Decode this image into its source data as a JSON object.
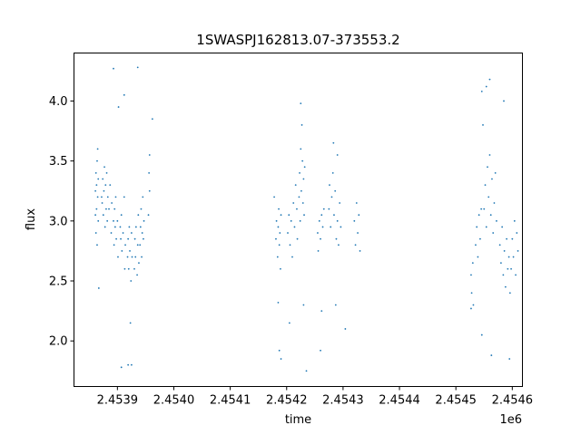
{
  "chart_data": {
    "type": "scatter",
    "title": "1SWASPJ162813.07-373553.2",
    "xlabel": "time",
    "ylabel": "flux",
    "x_offset_label": "1e6",
    "xlim": [
      2453823,
      2454618
    ],
    "ylim": [
      1.62,
      4.4
    ],
    "grid": false,
    "legend": "none",
    "point_color": "#1f77b4",
    "x_ticks": [
      {
        "value": 2453900,
        "label": "2.4539"
      },
      {
        "value": 2454000,
        "label": "2.4540"
      },
      {
        "value": 2454100,
        "label": "2.4541"
      },
      {
        "value": 2454200,
        "label": "2.4542"
      },
      {
        "value": 2454300,
        "label": "2.4543"
      },
      {
        "value": 2454400,
        "label": "2.4544"
      },
      {
        "value": 2454500,
        "label": "2.4545"
      },
      {
        "value": 2454600,
        "label": "2.4546"
      }
    ],
    "y_ticks": [
      {
        "value": 2.0,
        "label": "2.0"
      },
      {
        "value": 2.5,
        "label": "2.5"
      },
      {
        "value": 3.0,
        "label": "3.0"
      },
      {
        "value": 3.5,
        "label": "3.5"
      },
      {
        "value": 4.0,
        "label": "4.0"
      }
    ],
    "series": [
      {
        "points": [
          [
            2453861,
            3.25
          ],
          [
            2453861,
            3.05
          ],
          [
            2453862,
            3.4
          ],
          [
            2453862,
            2.9
          ],
          [
            2453863,
            3.3
          ],
          [
            2453863,
            3.1
          ],
          [
            2453864,
            3.5
          ],
          [
            2453864,
            2.8
          ],
          [
            2453865,
            3.2
          ],
          [
            2453865,
            3.6
          ],
          [
            2453866,
            3.0
          ],
          [
            2453866,
            3.35
          ],
          [
            2453872,
            3.2
          ],
          [
            2453873,
            3.15
          ],
          [
            2453874,
            3.35
          ],
          [
            2453875,
            3.05
          ],
          [
            2453876,
            3.25
          ],
          [
            2453877,
            3.45
          ],
          [
            2453878,
            2.95
          ],
          [
            2453879,
            3.3
          ],
          [
            2453880,
            3.1
          ],
          [
            2453881,
            3.4
          ],
          [
            2453882,
            3.0
          ],
          [
            2453883,
            3.2
          ],
          [
            2453885,
            3.1
          ],
          [
            2453887,
            3.3
          ],
          [
            2453889,
            2.9
          ],
          [
            2453890,
            3.15
          ],
          [
            2453893,
            3.0
          ],
          [
            2453894,
            2.8
          ],
          [
            2453895,
            3.1
          ],
          [
            2453896,
            2.95
          ],
          [
            2453897,
            3.2
          ],
          [
            2453898,
            2.85
          ],
          [
            2453900,
            3.0
          ],
          [
            2453901,
            2.7
          ],
          [
            2453905,
            2.95
          ],
          [
            2453906,
            2.85
          ],
          [
            2453907,
            3.05
          ],
          [
            2453908,
            2.75
          ],
          [
            2453910,
            2.9
          ],
          [
            2453912,
            3.2
          ],
          [
            2453913,
            2.6
          ],
          [
            2453914,
            2.8
          ],
          [
            2453918,
            2.7
          ],
          [
            2453919,
            2.85
          ],
          [
            2453920,
            2.6
          ],
          [
            2453921,
            2.95
          ],
          [
            2453922,
            2.75
          ],
          [
            2453924,
            2.5
          ],
          [
            2453925,
            2.9
          ],
          [
            2453926,
            2.7
          ],
          [
            2453930,
            2.6
          ],
          [
            2453931,
            2.85
          ],
          [
            2453932,
            2.7
          ],
          [
            2453933,
            2.95
          ],
          [
            2453935,
            2.55
          ],
          [
            2453936,
            2.8
          ],
          [
            2453937,
            3.05
          ],
          [
            2453938,
            2.65
          ],
          [
            2453940,
            2.8
          ],
          [
            2453941,
            2.95
          ],
          [
            2453942,
            3.1
          ],
          [
            2453943,
            2.7
          ],
          [
            2453944,
            2.9
          ],
          [
            2453945,
            3.2
          ],
          [
            2453946,
            2.85
          ],
          [
            2453947,
            3.0
          ],
          [
            2453955,
            3.05
          ],
          [
            2453956,
            3.4
          ],
          [
            2453957,
            3.25
          ],
          [
            2453893,
            4.27
          ],
          [
            2453902,
            3.95
          ],
          [
            2453907,
            1.78
          ],
          [
            2453912,
            4.05
          ],
          [
            2453919,
            1.8
          ],
          [
            2453925,
            1.8
          ],
          [
            2453936,
            4.28
          ],
          [
            2453923,
            2.15
          ],
          [
            2453867,
            2.44
          ],
          [
            2453962,
            3.85
          ],
          [
            2453957,
            3.55
          ],
          [
            2454178,
            3.2
          ],
          [
            2454181,
            2.85
          ],
          [
            2454182,
            3.0
          ],
          [
            2454184,
            2.7
          ],
          [
            2454185,
            2.95
          ],
          [
            2454186,
            3.1
          ],
          [
            2454187,
            2.8
          ],
          [
            2454188,
            2.9
          ],
          [
            2454189,
            2.6
          ],
          [
            2454190,
            3.05
          ],
          [
            2454202,
            2.9
          ],
          [
            2454204,
            3.05
          ],
          [
            2454206,
            2.8
          ],
          [
            2454208,
            3.0
          ],
          [
            2454210,
            2.7
          ],
          [
            2454212,
            3.15
          ],
          [
            2454214,
            2.95
          ],
          [
            2454216,
            3.3
          ],
          [
            2454218,
            3.1
          ],
          [
            2454219,
            2.85
          ],
          [
            2454222,
            3.2
          ],
          [
            2454223,
            3.4
          ],
          [
            2454224,
            3.0
          ],
          [
            2454225,
            3.6
          ],
          [
            2454226,
            3.25
          ],
          [
            2454228,
            3.5
          ],
          [
            2454229,
            3.15
          ],
          [
            2454230,
            3.35
          ],
          [
            2454231,
            3.05
          ],
          [
            2454232,
            3.45
          ],
          [
            2454255,
            2.9
          ],
          [
            2454256,
            2.75
          ],
          [
            2454258,
            3.0
          ],
          [
            2454260,
            2.85
          ],
          [
            2454262,
            3.05
          ],
          [
            2454264,
            2.95
          ],
          [
            2454266,
            3.1
          ],
          [
            2454275,
            3.1
          ],
          [
            2454276,
            3.3
          ],
          [
            2454278,
            2.95
          ],
          [
            2454280,
            3.2
          ],
          [
            2454282,
            3.4
          ],
          [
            2454284,
            3.05
          ],
          [
            2454286,
            3.25
          ],
          [
            2454288,
            2.85
          ],
          [
            2454290,
            3.0
          ],
          [
            2454292,
            2.8
          ],
          [
            2454294,
            3.15
          ],
          [
            2454296,
            2.95
          ],
          [
            2454320,
            3.0
          ],
          [
            2454322,
            2.8
          ],
          [
            2454324,
            3.15
          ],
          [
            2454326,
            2.9
          ],
          [
            2454328,
            3.05
          ],
          [
            2454330,
            2.75
          ],
          [
            2454185,
            2.32
          ],
          [
            2454187,
            1.92
          ],
          [
            2454190,
            1.85
          ],
          [
            2454205,
            2.15
          ],
          [
            2454225,
            3.98
          ],
          [
            2454227,
            3.8
          ],
          [
            2454230,
            2.3
          ],
          [
            2454235,
            1.75
          ],
          [
            2454262,
            2.25
          ],
          [
            2454260,
            1.92
          ],
          [
            2454283,
            3.65
          ],
          [
            2454287,
            2.3
          ],
          [
            2454304,
            2.1
          ],
          [
            2454290,
            3.55
          ],
          [
            2454527,
            2.55
          ],
          [
            2454528,
            2.4
          ],
          [
            2454530,
            2.65
          ],
          [
            2454531,
            2.3
          ],
          [
            2454535,
            2.8
          ],
          [
            2454537,
            2.95
          ],
          [
            2454539,
            2.7
          ],
          [
            2454541,
            3.05
          ],
          [
            2454543,
            2.85
          ],
          [
            2454545,
            3.1
          ],
          [
            2454550,
            3.1
          ],
          [
            2454552,
            3.3
          ],
          [
            2454554,
            2.95
          ],
          [
            2454556,
            3.45
          ],
          [
            2454558,
            3.2
          ],
          [
            2454560,
            3.55
          ],
          [
            2454562,
            3.05
          ],
          [
            2454564,
            3.35
          ],
          [
            2454566,
            2.9
          ],
          [
            2454568,
            3.15
          ],
          [
            2454570,
            3.4
          ],
          [
            2454572,
            3.0
          ],
          [
            2454578,
            2.8
          ],
          [
            2454580,
            2.65
          ],
          [
            2454582,
            2.95
          ],
          [
            2454584,
            2.55
          ],
          [
            2454586,
            2.75
          ],
          [
            2454588,
            2.45
          ],
          [
            2454590,
            2.85
          ],
          [
            2454592,
            2.6
          ],
          [
            2454594,
            2.7
          ],
          [
            2454596,
            2.4
          ],
          [
            2454598,
            2.6
          ],
          [
            2454600,
            2.85
          ],
          [
            2454602,
            2.7
          ],
          [
            2454604,
            3.0
          ],
          [
            2454606,
            2.55
          ],
          [
            2454608,
            2.9
          ],
          [
            2454610,
            2.75
          ],
          [
            2454546,
            4.08
          ],
          [
            2454554,
            4.12
          ],
          [
            2454560,
            4.18
          ],
          [
            2454585,
            4.0
          ],
          [
            2454563,
            1.88
          ],
          [
            2454546,
            2.05
          ],
          [
            2454595,
            1.85
          ],
          [
            2454548,
            3.8
          ],
          [
            2454527,
            2.27
          ]
        ]
      }
    ]
  }
}
